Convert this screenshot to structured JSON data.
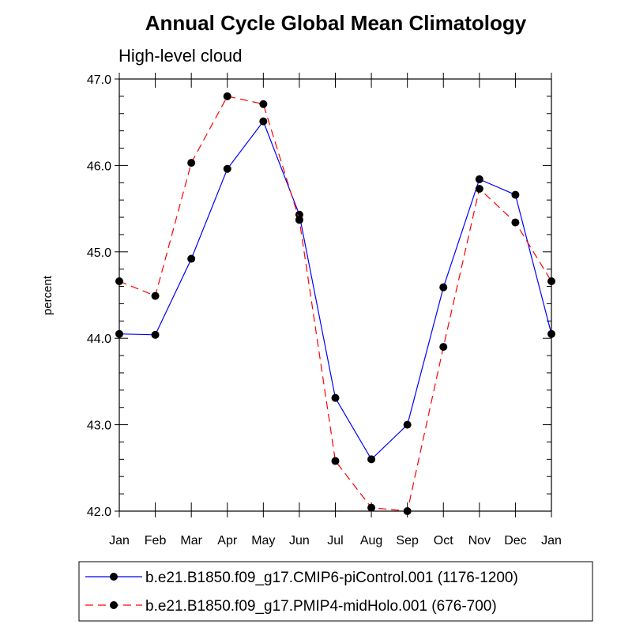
{
  "chart_data": {
    "type": "line",
    "title": "Annual Cycle Global Mean Climatology",
    "subtitle": "High-level cloud",
    "xlabel": "",
    "ylabel": "percent",
    "ylim": [
      42.0,
      47.0
    ],
    "y_ticks": [
      "42.0",
      "43.0",
      "44.0",
      "45.0",
      "46.0",
      "47.0"
    ],
    "categories": [
      "Jan",
      "Feb",
      "Mar",
      "Apr",
      "May",
      "Jun",
      "Jul",
      "Aug",
      "Sep",
      "Oct",
      "Nov",
      "Dec",
      "Jan"
    ],
    "grid": false,
    "legend_position": "bottom",
    "series": [
      {
        "name": "b.e21.B1850.f09_g17.CMIP6-piControl.001 (1176-1200)",
        "color": "#0000ff",
        "dash": "solid",
        "values": [
          44.05,
          44.04,
          44.92,
          45.96,
          46.51,
          45.43,
          43.31,
          42.6,
          43.0,
          44.59,
          45.84,
          45.66,
          44.05
        ]
      },
      {
        "name": "b.e21.B1850.f09_g17.PMIP4-midHolo.001 (676-700)",
        "color": "#ff0000",
        "dash": "dashed",
        "values": [
          44.66,
          44.49,
          46.03,
          46.8,
          46.71,
          45.37,
          42.58,
          42.04,
          42.0,
          43.9,
          45.73,
          45.34,
          44.66
        ]
      }
    ]
  }
}
